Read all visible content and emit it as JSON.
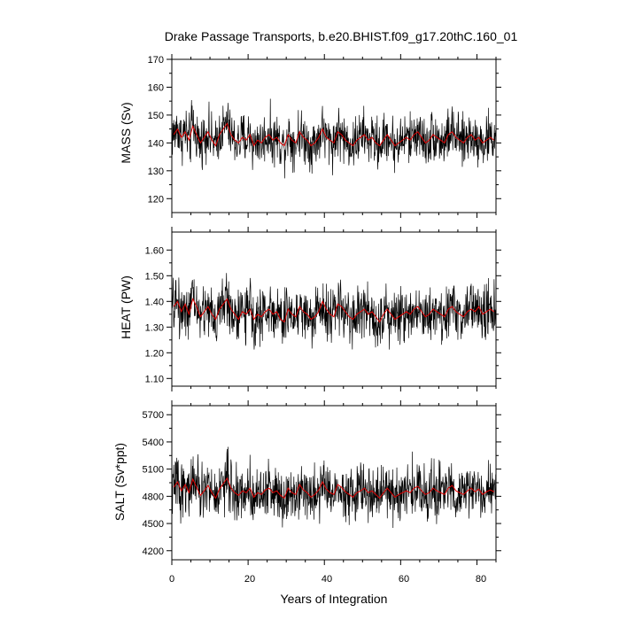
{
  "chart_data": {
    "type": "line",
    "title": "Drake Passage Transports, b.e20.BHIST.f09_g17.20thC.160_01",
    "xlabel": "Years of Integration",
    "xlim": [
      0,
      85
    ],
    "x_ticks": [
      "0",
      "20",
      "40",
      "60",
      "80"
    ],
    "grid": false,
    "series_colors": {
      "monthly": "#000000",
      "annual_mean": "#e00000"
    },
    "panels": [
      {
        "ylabel": "MASS (Sv)",
        "ylim": [
          115,
          170
        ],
        "y_ticks": [
          "120",
          "130",
          "140",
          "150",
          "160",
          "170"
        ],
        "mean": 142,
        "annual_mean_x": [
          0.5,
          1.5,
          2.5,
          3.5,
          4.5,
          5.5,
          6.5,
          7.5,
          8.5,
          9.5,
          10.5,
          11.5,
          12.5,
          13.5,
          14.5,
          15.5,
          16.5,
          17.5,
          18.5,
          19.5,
          20.5,
          21.5,
          22.5,
          23.5,
          24.5,
          25.5,
          26.5,
          27.5,
          28.5,
          29.5,
          30.5,
          31.5,
          32.5,
          33.5,
          34.5,
          35.5,
          36.5,
          37.5,
          38.5,
          39.5,
          40.5,
          41.5,
          42.5,
          43.5,
          44.5,
          45.5,
          46.5,
          47.5,
          48.5,
          49.5,
          50.5,
          51.5,
          52.5,
          53.5,
          54.5,
          55.5,
          56.5,
          57.5,
          58.5,
          59.5,
          60.5,
          61.5,
          62.5,
          63.5,
          64.5,
          65.5,
          66.5,
          67.5,
          68.5,
          69.5,
          70.5,
          71.5,
          72.5,
          73.5,
          74.5,
          75.5,
          76.5,
          77.5,
          78.5,
          79.5,
          80.5,
          81.5,
          82.5,
          83.5,
          84.5
        ],
        "annual_mean_y": [
          143,
          145,
          142,
          144,
          141,
          146,
          143,
          140,
          142,
          144,
          141,
          139,
          143,
          145,
          147,
          143,
          141,
          140,
          142,
          141,
          143,
          139,
          141,
          140,
          142,
          143,
          141,
          142,
          140,
          139,
          143,
          141,
          140,
          144,
          142,
          141,
          139,
          140,
          142,
          145,
          142,
          141,
          140,
          144,
          143,
          141,
          140,
          139,
          141,
          142,
          143,
          141,
          142,
          140,
          139,
          141,
          143,
          141,
          139,
          140,
          141,
          142,
          141,
          143,
          144,
          142,
          140,
          141,
          143,
          142,
          141,
          140,
          143,
          144,
          142,
          141,
          140,
          142,
          143,
          141,
          142,
          140,
          141,
          142,
          141
        ]
      },
      {
        "ylabel": "HEAT (PW)",
        "ylim": [
          1.07,
          1.67
        ],
        "y_ticks": [
          "1.10",
          "1.20",
          "1.30",
          "1.40",
          "1.50",
          "1.60"
        ],
        "mean": 1.36,
        "annual_mean_x": [
          0.5,
          1.5,
          2.5,
          3.5,
          4.5,
          5.5,
          6.5,
          7.5,
          8.5,
          9.5,
          10.5,
          11.5,
          12.5,
          13.5,
          14.5,
          15.5,
          16.5,
          17.5,
          18.5,
          19.5,
          20.5,
          21.5,
          22.5,
          23.5,
          24.5,
          25.5,
          26.5,
          27.5,
          28.5,
          29.5,
          30.5,
          31.5,
          32.5,
          33.5,
          34.5,
          35.5,
          36.5,
          37.5,
          38.5,
          39.5,
          40.5,
          41.5,
          42.5,
          43.5,
          44.5,
          45.5,
          46.5,
          47.5,
          48.5,
          49.5,
          50.5,
          51.5,
          52.5,
          53.5,
          54.5,
          55.5,
          56.5,
          57.5,
          58.5,
          59.5,
          60.5,
          61.5,
          62.5,
          63.5,
          64.5,
          65.5,
          66.5,
          67.5,
          68.5,
          69.5,
          70.5,
          71.5,
          72.5,
          73.5,
          74.5,
          75.5,
          76.5,
          77.5,
          78.5,
          79.5,
          80.5,
          81.5,
          82.5,
          83.5,
          84.5
        ],
        "annual_mean_y": [
          1.38,
          1.4,
          1.36,
          1.39,
          1.35,
          1.41,
          1.38,
          1.34,
          1.36,
          1.38,
          1.35,
          1.33,
          1.37,
          1.39,
          1.41,
          1.37,
          1.35,
          1.33,
          1.36,
          1.35,
          1.37,
          1.33,
          1.35,
          1.34,
          1.36,
          1.37,
          1.35,
          1.36,
          1.33,
          1.32,
          1.37,
          1.35,
          1.34,
          1.38,
          1.36,
          1.35,
          1.33,
          1.34,
          1.36,
          1.4,
          1.37,
          1.35,
          1.34,
          1.39,
          1.38,
          1.36,
          1.34,
          1.33,
          1.35,
          1.36,
          1.37,
          1.35,
          1.36,
          1.34,
          1.32,
          1.35,
          1.37,
          1.35,
          1.33,
          1.34,
          1.35,
          1.36,
          1.35,
          1.37,
          1.38,
          1.36,
          1.34,
          1.35,
          1.37,
          1.36,
          1.35,
          1.34,
          1.37,
          1.38,
          1.36,
          1.35,
          1.34,
          1.36,
          1.37,
          1.36,
          1.38,
          1.35,
          1.36,
          1.37,
          1.36
        ]
      },
      {
        "ylabel": "SALT (Sv*ppt)",
        "ylim": [
          4100,
          5800
        ],
        "y_ticks": [
          "4200",
          "4500",
          "4800",
          "5100",
          "5400",
          "5700"
        ],
        "mean": 4860,
        "annual_mean_x": [
          0.5,
          1.5,
          2.5,
          3.5,
          4.5,
          5.5,
          6.5,
          7.5,
          8.5,
          9.5,
          10.5,
          11.5,
          12.5,
          13.5,
          14.5,
          15.5,
          16.5,
          17.5,
          18.5,
          19.5,
          20.5,
          21.5,
          22.5,
          23.5,
          24.5,
          25.5,
          26.5,
          27.5,
          28.5,
          29.5,
          30.5,
          31.5,
          32.5,
          33.5,
          34.5,
          35.5,
          36.5,
          37.5,
          38.5,
          39.5,
          40.5,
          41.5,
          42.5,
          43.5,
          44.5,
          45.5,
          46.5,
          47.5,
          48.5,
          49.5,
          50.5,
          51.5,
          52.5,
          53.5,
          54.5,
          55.5,
          56.5,
          57.5,
          58.5,
          59.5,
          60.5,
          61.5,
          62.5,
          63.5,
          64.5,
          65.5,
          66.5,
          67.5,
          68.5,
          69.5,
          70.5,
          71.5,
          72.5,
          73.5,
          74.5,
          75.5,
          76.5,
          77.5,
          78.5,
          79.5,
          80.5,
          81.5,
          82.5,
          83.5,
          84.5
        ],
        "annual_mean_y": [
          4900,
          4960,
          4860,
          4930,
          4840,
          4990,
          4900,
          4810,
          4860,
          4920,
          4840,
          4780,
          4880,
          4940,
          5000,
          4890,
          4840,
          4810,
          4860,
          4840,
          4890,
          4790,
          4840,
          4820,
          4870,
          4890,
          4840,
          4860,
          4810,
          4780,
          4890,
          4840,
          4820,
          4930,
          4870,
          4840,
          4790,
          4820,
          4870,
          4960,
          4880,
          4840,
          4820,
          4930,
          4900,
          4850,
          4820,
          4790,
          4840,
          4860,
          4890,
          4840,
          4860,
          4820,
          4780,
          4840,
          4890,
          4840,
          4790,
          4820,
          4840,
          4860,
          4840,
          4890,
          4910,
          4860,
          4820,
          4840,
          4890,
          4860,
          4840,
          4820,
          4890,
          4920,
          4860,
          4840,
          4820,
          4860,
          4890,
          4850,
          4880,
          4820,
          4850,
          4870,
          4850
        ]
      }
    ]
  }
}
